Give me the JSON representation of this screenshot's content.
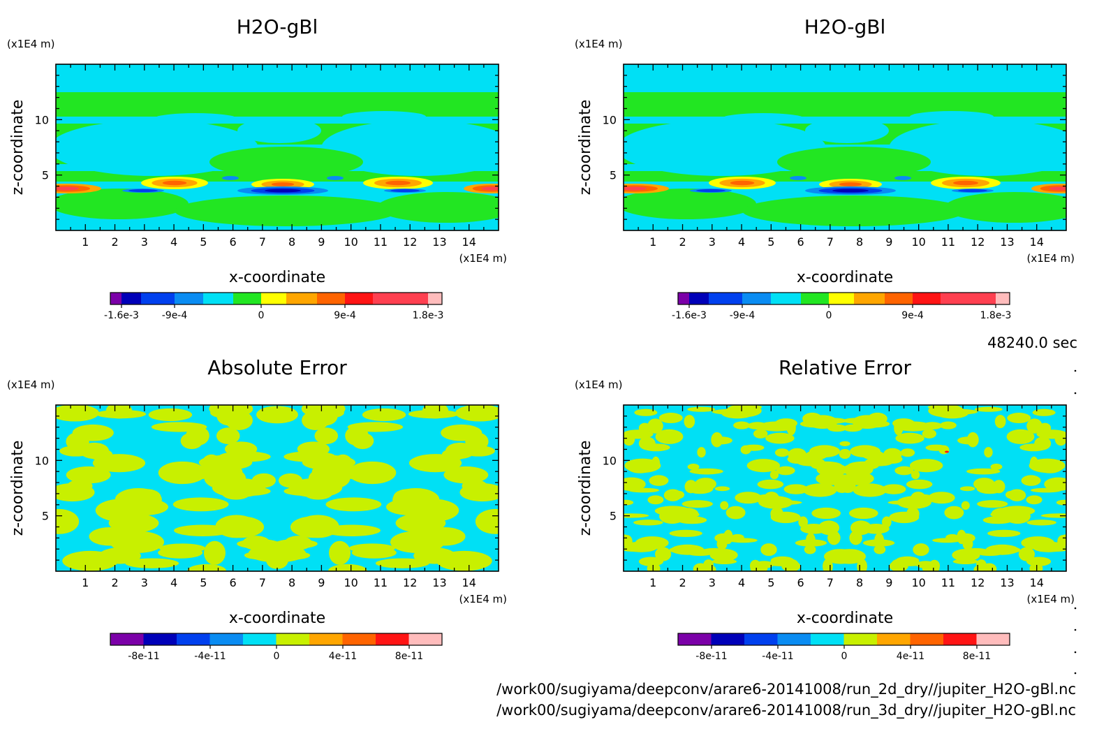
{
  "colors": {
    "field_scale": [
      "#7b00a8",
      "#0000b8",
      "#0040ee",
      "#0a8cf2",
      "#00e0f5",
      "#22e622",
      "#ffff00",
      "#ffa600",
      "#ff6400",
      "#ff1414",
      "#ff4050",
      "#ffbcbc"
    ],
    "error_scale": [
      "#7b00a8",
      "#0000b8",
      "#0040ee",
      "#0a8cf2",
      "#00e0f5",
      "#c8f000",
      "#ffa600",
      "#ff6400",
      "#ff1414",
      "#ffbcbc"
    ]
  },
  "time_label": "48240.0 sec",
  "footer": {
    "file1": "/work00/sugiyama/deepconv/arare6-20141008/run_2d_dry//jupiter_H2O-gBl.nc",
    "file2": "/work00/sugiyama/deepconv/arare6-20141008/run_3d_dry//jupiter_H2O-gBl.nc"
  },
  "chart_data": [
    {
      "type": "heatmap",
      "title": "H2O-gBl",
      "xlabel": "x-coordinate",
      "ylabel": "z-coordinate",
      "x_unit": "(x1E4 m)",
      "y_unit": "(x1E4 m)",
      "xlim": [
        0,
        15
      ],
      "ylim": [
        0,
        15
      ],
      "x_ticks": [
        "1",
        "2",
        "3",
        "4",
        "5",
        "6",
        "7",
        "8",
        "9",
        "10",
        "11",
        "12",
        "13",
        "14"
      ],
      "y_ticks": [
        "5",
        "10"
      ],
      "colorbar_labels": [
        "-1.6e-3",
        "-9e-4",
        "0",
        "9e-4",
        "1.8e-3"
      ]
    },
    {
      "type": "heatmap",
      "title": "H2O-gBl",
      "xlabel": "x-coordinate",
      "ylabel": "z-coordinate",
      "x_unit": "(x1E4 m)",
      "y_unit": "(x1E4 m)",
      "xlim": [
        0,
        15
      ],
      "ylim": [
        0,
        15
      ],
      "x_ticks": [
        "1",
        "2",
        "3",
        "4",
        "5",
        "6",
        "7",
        "8",
        "9",
        "10",
        "11",
        "12",
        "13",
        "14"
      ],
      "y_ticks": [
        "5",
        "10"
      ],
      "colorbar_labels": [
        "-1.6e-3",
        "-9e-4",
        "0",
        "9e-4",
        "1.8e-3"
      ]
    },
    {
      "type": "heatmap",
      "title": "Absolute Error",
      "xlabel": "x-coordinate",
      "ylabel": "z-coordinate",
      "x_unit": "(x1E4 m)",
      "y_unit": "(x1E4 m)",
      "xlim": [
        0,
        15
      ],
      "ylim": [
        0,
        15
      ],
      "x_ticks": [
        "1",
        "2",
        "3",
        "4",
        "5",
        "6",
        "7",
        "8",
        "9",
        "10",
        "11",
        "12",
        "13",
        "14"
      ],
      "y_ticks": [
        "5",
        "10"
      ],
      "colorbar_labels": [
        "-8e-11",
        "-4e-11",
        "0",
        "4e-11",
        "8e-11"
      ]
    },
    {
      "type": "heatmap",
      "title": "Relative Error",
      "xlabel": "x-coordinate",
      "ylabel": "z-coordinate",
      "x_unit": "(x1E4 m)",
      "y_unit": "(x1E4 m)",
      "xlim": [
        0,
        15
      ],
      "ylim": [
        0,
        15
      ],
      "x_ticks": [
        "1",
        "2",
        "3",
        "4",
        "5",
        "6",
        "7",
        "8",
        "9",
        "10",
        "11",
        "12",
        "13",
        "14"
      ],
      "y_ticks": [
        "5",
        "10"
      ],
      "colorbar_labels": [
        "-8e-11",
        "-4e-11",
        "0",
        "4e-11",
        "8e-11"
      ]
    }
  ]
}
